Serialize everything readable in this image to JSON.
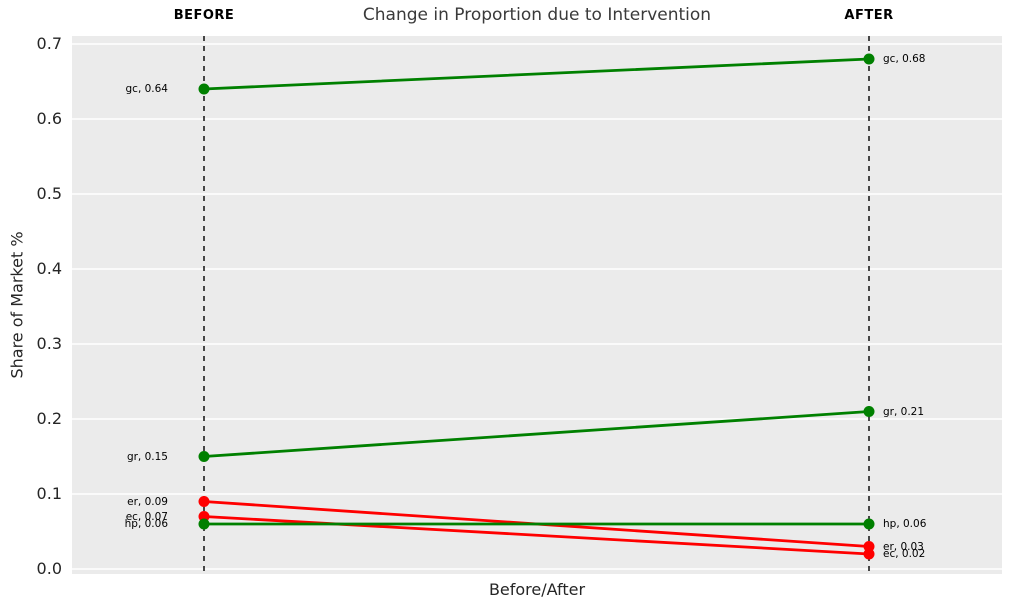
{
  "header": {
    "title": "Change in Proportion due to Intervention",
    "before_label": "BEFORE",
    "after_label": "AFTER"
  },
  "chart_data": {
    "type": "line",
    "subtype": "slopegraph",
    "title": "Change in Proportion due to Intervention",
    "xlabel": "Before/After",
    "ylabel": "Share of Market %",
    "categories": [
      "BEFORE",
      "AFTER"
    ],
    "ylim": [
      0.0,
      0.7
    ],
    "yticks": [
      0.0,
      0.1,
      0.2,
      0.3,
      0.4,
      0.5,
      0.6,
      0.7
    ],
    "grid": "horizontal-white-gridlines",
    "legend": "none",
    "series": [
      {
        "name": "gc",
        "values": [
          0.64,
          0.68
        ],
        "color": "#008000",
        "labels": [
          "gc, 0.64",
          "gc, 0.68"
        ]
      },
      {
        "name": "gr",
        "values": [
          0.15,
          0.21
        ],
        "color": "#008000",
        "labels": [
          "gr, 0.15",
          "gr, 0.21"
        ]
      },
      {
        "name": "er",
        "values": [
          0.09,
          0.03
        ],
        "color": "#ff0000",
        "labels": [
          "er, 0.09",
          "er, 0.03"
        ]
      },
      {
        "name": "ec",
        "values": [
          0.07,
          0.02
        ],
        "color": "#ff0000",
        "labels": [
          "ec, 0.07",
          "ec, 0.02"
        ]
      },
      {
        "name": "hp",
        "values": [
          0.06,
          0.06
        ],
        "color": "#008000",
        "labels": [
          "hp, 0.06",
          "hp, 0.06"
        ]
      }
    ],
    "styles": {
      "plot_background": "#ebebeb",
      "grid_color": "#ffffff",
      "guide_line_color": "#000000",
      "guide_line_style": "dashed",
      "increase_color": "#008000",
      "decrease_color": "#ff0000"
    }
  }
}
